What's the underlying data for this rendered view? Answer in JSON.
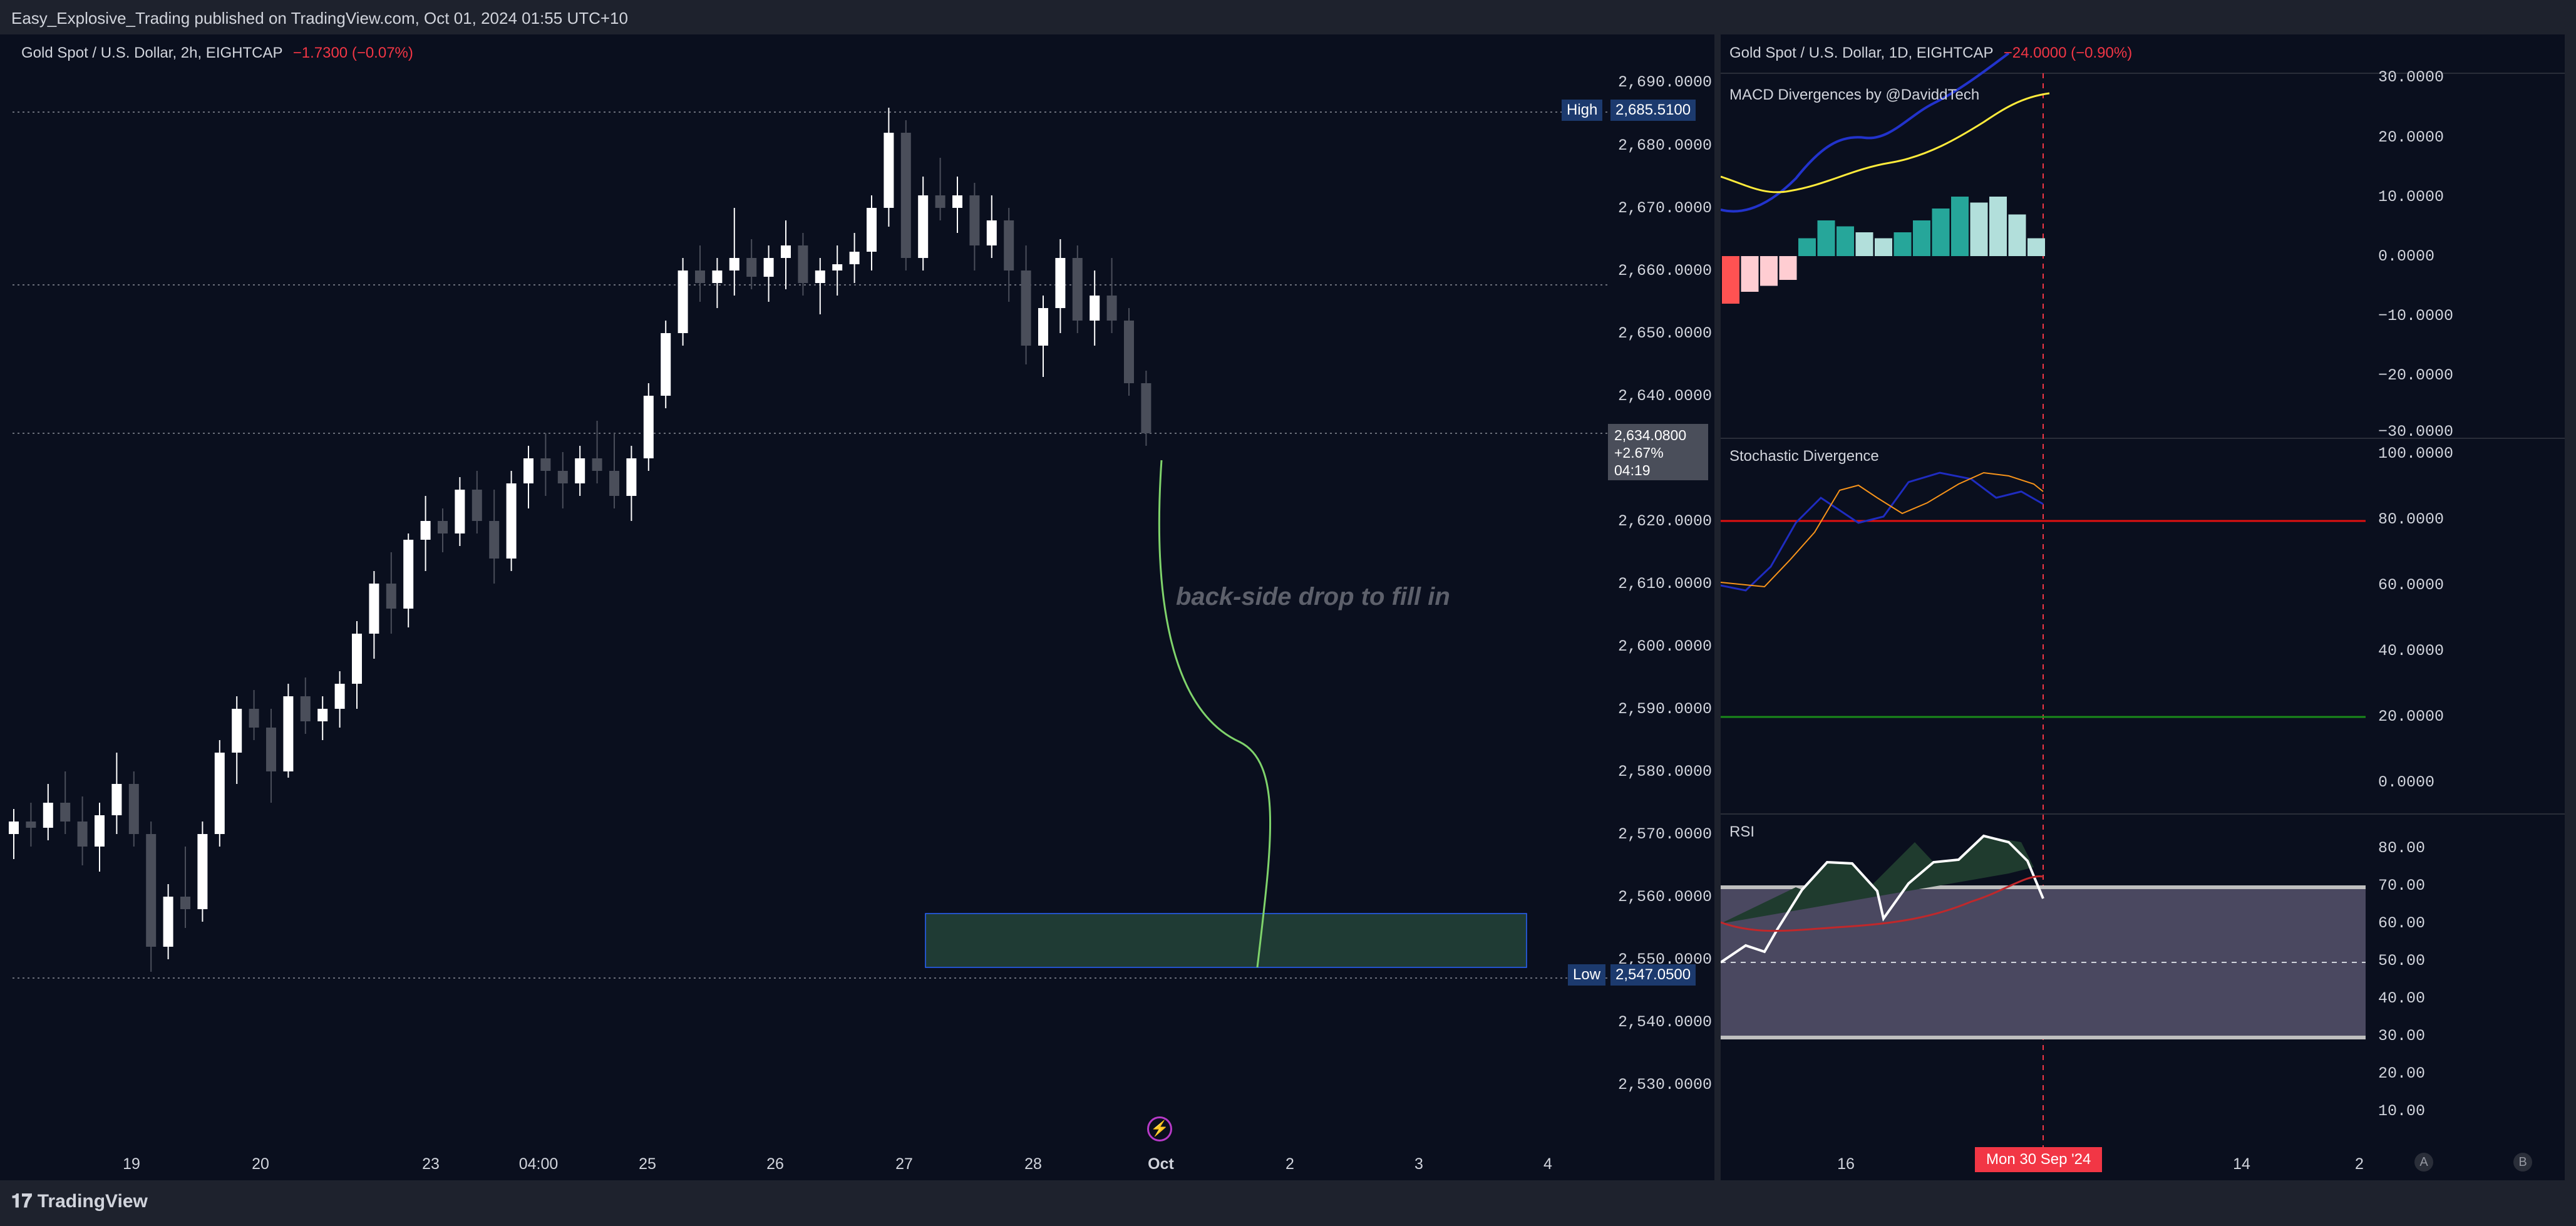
{
  "publish_line": "Easy_Explosive_Trading published on TradingView.com, Oct 01, 2024 01:55 UTC+10",
  "brand": "TradingView",
  "colors": {
    "bg": "#0a0f1e",
    "up": "#ffffff",
    "down": "#4a4e5a",
    "accent_red": "#f23645",
    "curve": "#7fd36b",
    "box": "#1f3b34"
  },
  "main_chart": {
    "symbol": "Gold Spot / U.S. Dollar, 2h, EIGHTCAP",
    "change": "−1.7300 (−0.07%)",
    "annotation": "back-side drop to fill in",
    "high_label": "High",
    "high_value": "2,685.5100",
    "low_label": "Low",
    "low_value": "2,547.0500",
    "price_value": "2,634.0800",
    "price_change": "+2.67%",
    "price_timer": "04:19",
    "y_ticks": [
      "2,690.0000",
      "2,680.0000",
      "2,670.0000",
      "2,660.0000",
      "2,650.0000",
      "2,640.0000",
      "2,620.0000",
      "2,610.0000",
      "2,600.0000",
      "2,590.0000",
      "2,580.0000",
      "2,570.0000",
      "2,560.0000",
      "2,550.0000",
      "2,540.0000",
      "2,530.0000"
    ],
    "x_ticks": [
      "19",
      "20",
      "23",
      "04:00",
      "25",
      "26",
      "27",
      "28",
      "Oct",
      "2",
      "3",
      "4"
    ]
  },
  "right_chart": {
    "symbol": "Gold Spot / U.S. Dollar, 1D, EIGHTCAP",
    "change": "−24.0000 (−0.90%)",
    "macd": {
      "title": "MACD Divergences by @DaviddTech",
      "y_ticks": [
        "30.0000",
        "20.0000",
        "10.0000",
        "0.0000",
        "−10.0000",
        "−20.0000",
        "−30.0000"
      ]
    },
    "stoch": {
      "title": "Stochastic Divergence",
      "y_ticks": [
        "100.0000",
        "80.0000",
        "60.0000",
        "40.0000",
        "20.0000",
        "0.0000"
      ]
    },
    "rsi": {
      "title": "RSI",
      "y_ticks": [
        "80.00",
        "70.00",
        "60.00",
        "50.00",
        "40.00",
        "30.00",
        "20.00",
        "10.00"
      ]
    },
    "x_ticks": [
      "16",
      "14",
      "2"
    ],
    "cursor_date": "Mon 30 Sep '24",
    "corner_a": "A",
    "corner_b": "B"
  }
}
